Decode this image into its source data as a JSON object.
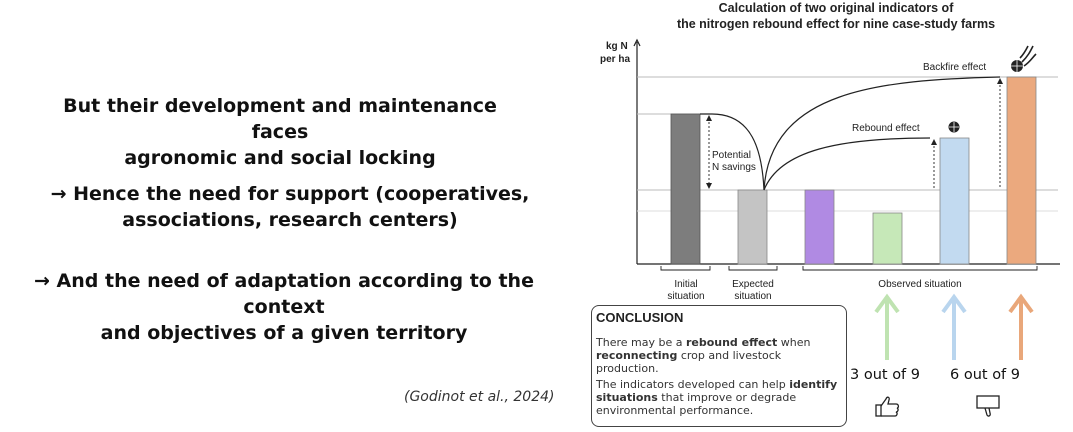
{
  "left": {
    "point1_line1": "But their development and maintenance faces",
    "point1_line2": "agronomic and social locking",
    "point2_line1": "→ Hence the need for support (cooperatives,",
    "point2_line2": "associations, research centers)",
    "point3_line1": "→ And the need of adaptation according to the context",
    "point3_line2": "and objectives of a given territory",
    "citation": "(Godinot et al., 2024)"
  },
  "figure": {
    "title_line1": "Calculation of two original indicators of",
    "title_line2": "the nitrogen rebound effect for nine case-study farms",
    "y_unit_line1": "kg N",
    "y_unit_line2": "per ha",
    "backfire_label": "Backfire effect",
    "rebound_label": "Rebound effect",
    "potential_line1": "Potential",
    "potential_line2": "N savings",
    "initial_line1": "Initial",
    "initial_line2": "situation",
    "expected_line1": "Expected",
    "expected_line2": "situation",
    "observed_label": "Observed situation",
    "colors": {
      "initial": "#7d7d7d",
      "expected": "#c4c4c4",
      "purple": "#b08ae3",
      "green": "#c6e8b8",
      "blue": "#c2daf0",
      "orange": "#eba97e",
      "arrow_green": "#bfe3b1",
      "arrow_blue": "#b9d5ee",
      "arrow_orange": "#e9a77a"
    }
  },
  "conclusion": {
    "heading": "CONCLUSION",
    "p1_a": "There may be a ",
    "p1_b": "rebound effect",
    "p1_c": " when",
    "p1_d": "reconnecting",
    "p1_e": " crop and livestock production.",
    "p2_a": "The indicators developed can help ",
    "p2_b": "identify",
    "p2_c": "situations",
    "p2_d": " that improve or degrade",
    "p2_e": "environmental performance."
  },
  "stats": {
    "good": "3 out of 9",
    "bad": "6 out of 9"
  }
}
